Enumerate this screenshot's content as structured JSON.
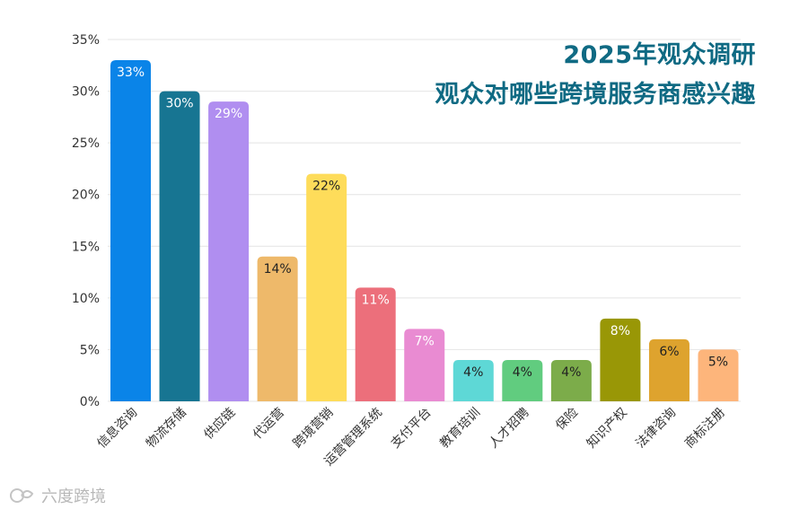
{
  "chart_data": {
    "type": "bar",
    "title": "2025年观众调研",
    "subtitle": "观众对哪些跨境服务商感兴趣",
    "categories": [
      "信息咨询",
      "物流存储",
      "供应链",
      "代运营",
      "跨境营销",
      "运营管理系统",
      "支付平台",
      "教育培训",
      "人才招聘",
      "保险",
      "知识产权",
      "法律咨询",
      "商标注册"
    ],
    "values": [
      33,
      30,
      29,
      14,
      22,
      11,
      7,
      4,
      4,
      4,
      8,
      6,
      5
    ],
    "value_labels": [
      "33%",
      "30%",
      "29%",
      "14%",
      "22%",
      "11%",
      "7%",
      "4%",
      "4%",
      "4%",
      "8%",
      "6%",
      "5%"
    ],
    "bar_colors": [
      "#0a84e8",
      "#177592",
      "#b08ef0",
      "#eeb96a",
      "#fedc5a",
      "#ec6f7b",
      "#e98bd2",
      "#5ed8d6",
      "#61cc7f",
      "#7cac4a",
      "#999706",
      "#dea32e",
      "#fdb57b"
    ],
    "label_colors": [
      "#ffffff",
      "#ffffff",
      "#ffffff",
      "#222222",
      "#222222",
      "#ffffff",
      "#ffffff",
      "#222222",
      "#222222",
      "#222222",
      "#ffffff",
      "#222222",
      "#222222"
    ],
    "y_ticks": [
      "0%",
      "5%",
      "10%",
      "15%",
      "20%",
      "25%",
      "30%",
      "35%"
    ],
    "ylim": [
      0,
      35
    ],
    "grid": true,
    "legend": "none"
  },
  "watermark": {
    "text": "六度跨境"
  },
  "colors": {
    "title": "#0f6a83",
    "axis_text": "#333333",
    "grid": "#e4e4e4"
  }
}
